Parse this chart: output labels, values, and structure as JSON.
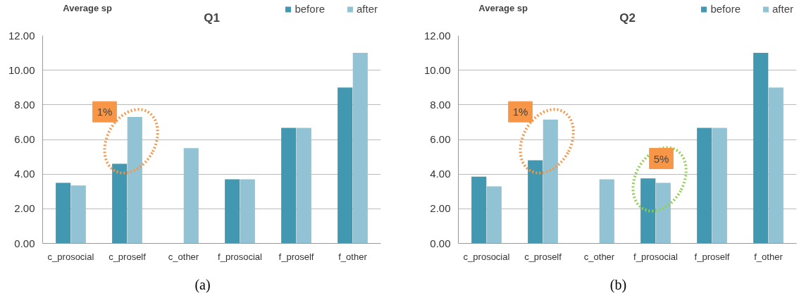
{
  "chart_data": [
    {
      "type": "bar",
      "title": "Q1",
      "ylabel": "Average sp",
      "categories": [
        "c_prosocial",
        "c_proself",
        "c_other",
        "f_prosocial",
        "f_proself",
        "f_other"
      ],
      "series": [
        {
          "name": "before",
          "color": "#4198b0",
          "values": [
            3.5,
            4.6,
            null,
            3.7,
            6.67,
            9.0
          ]
        },
        {
          "name": "after",
          "color": "#92c3d5",
          "values": [
            3.35,
            7.3,
            5.5,
            3.7,
            6.67,
            11.0
          ]
        }
      ],
      "ylim": [
        0,
        12
      ],
      "yticks": [
        {
          "value": 0,
          "label": "0.00"
        },
        {
          "value": 2,
          "label": "2.00"
        },
        {
          "value": 4,
          "label": "4.00"
        },
        {
          "value": 6,
          "label": "6.00"
        },
        {
          "value": 8,
          "label": "8.00"
        },
        {
          "value": 10,
          "label": "10.00"
        },
        {
          "value": 12,
          "label": "12.00"
        }
      ],
      "grid": "y",
      "legend": "top right",
      "annotations": [
        {
          "text": "1%",
          "x": "c_proself",
          "y": 5.9
        },
        "(a)"
      ]
    },
    {
      "type": "bar",
      "title": "Q2",
      "ylabel": "Average sp",
      "categories": [
        "c_prosocial",
        "c_proself",
        "c_other",
        "f_prosocial",
        "f_proself",
        "f_other"
      ],
      "series": [
        {
          "name": "before",
          "color": "#4198b0",
          "values": [
            3.85,
            4.8,
            null,
            3.75,
            6.67,
            11.0
          ]
        },
        {
          "name": "after",
          "color": "#92c3d5",
          "values": [
            3.3,
            7.15,
            3.7,
            3.5,
            6.67,
            9.0
          ]
        }
      ],
      "ylim": [
        0,
        12
      ],
      "yticks": [
        {
          "value": 0,
          "label": "0.00"
        },
        {
          "value": 2,
          "label": "2.00"
        },
        {
          "value": 4,
          "label": "4.00"
        },
        {
          "value": 6,
          "label": "6.00"
        },
        {
          "value": 8,
          "label": "8.00"
        },
        {
          "value": 10,
          "label": "10.00"
        },
        {
          "value": 12,
          "label": "12.00"
        }
      ],
      "grid": "y",
      "legend": "top right",
      "annotations": [
        {
          "text": "1%",
          "x": "c_proself",
          "y": 5.9
        },
        {
          "text": "5%",
          "x": "f_prosocial",
          "y": 3.7
        },
        "(b)"
      ]
    }
  ]
}
